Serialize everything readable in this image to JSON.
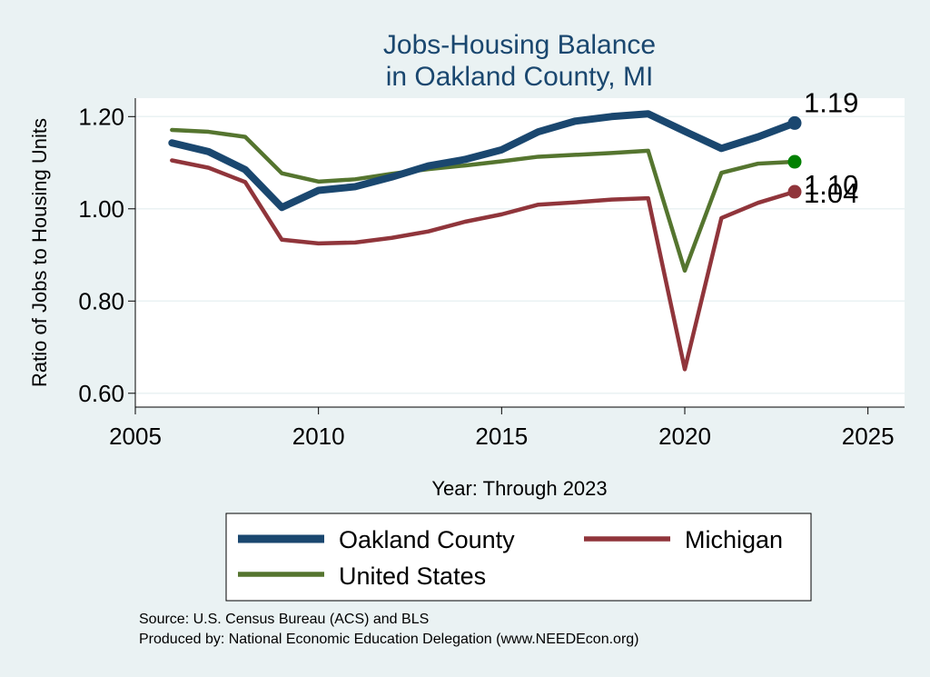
{
  "chart_data": {
    "type": "line",
    "title": "Jobs-Housing Balance",
    "subtitle": "in Oakland County, MI",
    "xlabel": "Year: Through 2023",
    "ylabel": "Ratio of Jobs to Housing Units",
    "xlim": [
      2005,
      2026
    ],
    "ylim": [
      0.57,
      1.24
    ],
    "xticks": [
      2005,
      2010,
      2015,
      2020,
      2025
    ],
    "yticks": [
      0.6,
      0.8,
      1.0,
      1.2
    ],
    "ytick_labels": [
      "0.60",
      "0.80",
      "1.00",
      "1.20"
    ],
    "grid": true,
    "legend_position": "bottom",
    "x": [
      2006,
      2007,
      2008,
      2009,
      2010,
      2011,
      2012,
      2013,
      2014,
      2015,
      2016,
      2017,
      2018,
      2019,
      2020,
      2021,
      2022,
      2023
    ],
    "series": [
      {
        "name": "Oakland County",
        "color": "#1a476f",
        "values": [
          1.143,
          1.124,
          1.085,
          1.003,
          1.04,
          1.048,
          1.069,
          1.093,
          1.107,
          1.128,
          1.167,
          1.19,
          1.2,
          1.206,
          1.168,
          1.131,
          1.156,
          1.186
        ],
        "end_label": "1.19"
      },
      {
        "name": "Michigan",
        "color": "#90353b",
        "values": [
          1.105,
          1.089,
          1.058,
          0.933,
          0.925,
          0.927,
          0.937,
          0.951,
          0.972,
          0.988,
          1.009,
          1.014,
          1.02,
          1.023,
          0.652,
          0.98,
          1.013,
          1.037
        ],
        "end_label": "1.04"
      },
      {
        "name": "United States",
        "color": "#55752f",
        "values": [
          1.171,
          1.167,
          1.156,
          1.077,
          1.059,
          1.064,
          1.076,
          1.086,
          1.094,
          1.103,
          1.113,
          1.117,
          1.121,
          1.126,
          0.866,
          1.078,
          1.098,
          1.102
        ],
        "end_label": "1.10"
      }
    ],
    "marker_colors": {
      "Oakland County": "#1a476f",
      "Michigan": "#90353b",
      "United States": "#008000"
    }
  },
  "notes": {
    "source": "Source: U.S. Census Bureau (ACS) and BLS",
    "produced_by": "Produced by: National Economic Education Delegation (www.NEEDEcon.org)"
  },
  "colors": {
    "background": "#eaf2f3",
    "plot_area": "#ffffff",
    "grid": "#eaf2f3",
    "title": "#1a476f"
  }
}
